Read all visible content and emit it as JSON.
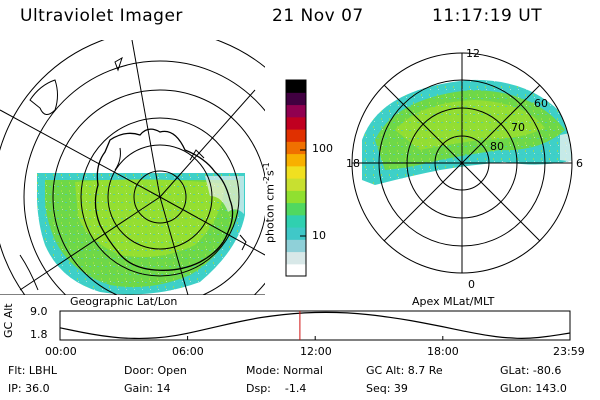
{
  "header": {
    "instrument": "Ultraviolet Imager",
    "date": "21 Nov 07",
    "time": "11:17:19 UT"
  },
  "geo_panel": {
    "label": "Geographic Lat/Lon"
  },
  "mag_panel": {
    "label": "Apex MLat/MLT",
    "mlt_labels": {
      "top": "12",
      "left": "18",
      "right": "6",
      "bottom": "0"
    },
    "lat_labels": [
      "60",
      "70",
      "80"
    ]
  },
  "colorbar": {
    "unit": "photon cm",
    "unit_sup1": "-2",
    "unit_mid": "s",
    "unit_sup2": "-1",
    "ticks": [
      "100",
      "10"
    ],
    "scale": "log",
    "colors": [
      "#ffffff",
      "#d8e8e8",
      "#8fd0d8",
      "#40c8c8",
      "#30d0b0",
      "#50d860",
      "#90e030",
      "#c8e030",
      "#f0e020",
      "#f8b000",
      "#f07000",
      "#e03000",
      "#c00020",
      "#900050",
      "#400040",
      "#000000"
    ]
  },
  "chart_data": {
    "type": "line",
    "title": "",
    "xlabel": "",
    "ylabel": "GC Alt",
    "x_ticks": [
      "00:00",
      "06:00",
      "12:00",
      "18:00",
      "23:59"
    ],
    "y_ticks": [
      "9.0",
      "1.8"
    ],
    "ylim": [
      1.8,
      9.0
    ],
    "series": [
      {
        "x": [
          "00:00",
          "01:00",
          "02:00",
          "03:00",
          "04:00",
          "05:00",
          "06:00",
          "07:00",
          "08:00",
          "09:00",
          "10:00",
          "11:00",
          "12:00",
          "13:00",
          "14:00",
          "15:00",
          "16:00",
          "17:00",
          "18:00",
          "19:00",
          "20:00",
          "21:00",
          "22:00",
          "23:00",
          "23:59"
        ],
        "values": [
          4.8,
          3.6,
          2.6,
          2.0,
          1.9,
          2.3,
          3.3,
          4.6,
          5.9,
          7.1,
          8.0,
          8.6,
          8.9,
          8.9,
          8.6,
          8.0,
          7.2,
          6.2,
          5.1,
          3.9,
          2.8,
          2.1,
          1.9,
          2.5,
          3.4
        ]
      }
    ],
    "marker_time": "11:17",
    "marker_color": "#d01010"
  },
  "status": {
    "filter": "Flt: LBHL",
    "ip": "IP: 36.0",
    "door": "Door: Open",
    "gain": "Gain: 14",
    "mode": "Mode: Normal",
    "dsp": "Dsp:    -1.4",
    "gc_alt": "GC Alt: 8.7 Re",
    "seq": "Seq: 39",
    "glat": "GLat: -80.6",
    "glon": "GLon: 143.0"
  }
}
